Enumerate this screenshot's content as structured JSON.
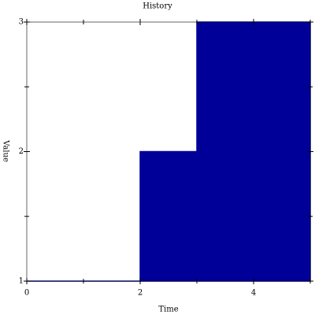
{
  "chart_data": {
    "type": "area",
    "step": "post",
    "title": "History",
    "x_label": "Time",
    "y_label": "Value",
    "x": [
      0,
      2,
      3,
      5
    ],
    "values": [
      1,
      2,
      3,
      3
    ],
    "color": "#000099",
    "xlim": [
      0,
      5
    ],
    "xticks": [
      0,
      2,
      4
    ],
    "xminorticks": [
      1,
      3,
      5
    ],
    "ylim": [
      1,
      3
    ],
    "yticks": [
      1,
      2,
      3
    ],
    "yminorticks": [
      1.5,
      2.5
    ],
    "grid": false
  }
}
